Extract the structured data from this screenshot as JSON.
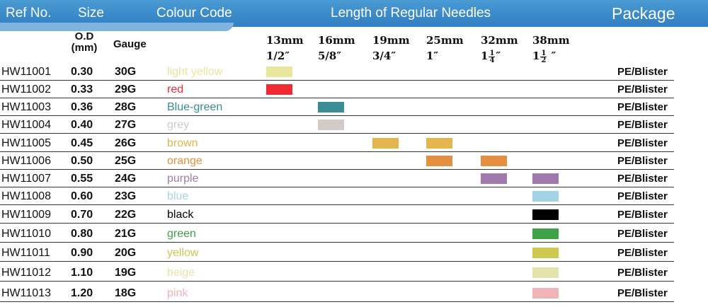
{
  "header": {
    "ref": "Ref No.",
    "size": "Size",
    "colour_code": "Colour Code",
    "length": "Length of Regular Needles",
    "package": "Package"
  },
  "subheader": {
    "od_line1": "O.D",
    "od_line2": "(mm)",
    "gauge": "Gauge"
  },
  "lengths": [
    {
      "mm": "13mm",
      "inch": "1/2″"
    },
    {
      "mm": "16mm",
      "inch": "5/8″"
    },
    {
      "mm": "19mm",
      "inch": "3/4″"
    },
    {
      "mm": "25mm",
      "inch": "1″"
    },
    {
      "mm": "32mm",
      "inch_whole": "1",
      "inch_num": "1",
      "inch_den": "4",
      "inch_mark": "″"
    },
    {
      "mm": "38mm",
      "inch_whole": "1",
      "inch_num": "1",
      "inch_den": "2",
      "inch_mark": " ″"
    }
  ],
  "rows": [
    {
      "ref": "HW11001",
      "od": "0.30",
      "gauge": "30G",
      "colour": "light yellow",
      "hex": "#e8e69a",
      "lengths": [
        "13mm"
      ],
      "package": "PE/Blister"
    },
    {
      "ref": "HW11002",
      "od": "0.33",
      "gauge": "29G",
      "colour": "red",
      "hex": "#ee2a32",
      "lengths": [
        "13mm"
      ],
      "package": "PE/Blister"
    },
    {
      "ref": "HW11003",
      "od": "0.36",
      "gauge": "28G",
      "colour": "Blue-green",
      "hex": "#3a8d93",
      "lengths": [
        "16mm"
      ],
      "package": "PE/Blister"
    },
    {
      "ref": "HW11004",
      "od": "0.40",
      "gauge": "27G",
      "colour": "grey",
      "hex": "#d3cac7",
      "lengths": [
        "16mm"
      ],
      "package": "PE/Blister"
    },
    {
      "ref": "HW11005",
      "od": "0.45",
      "gauge": "26G",
      "colour": "brown",
      "hex": "#e3b54c",
      "lengths": [
        "19mm",
        "25mm"
      ],
      "package": "PE/Blister"
    },
    {
      "ref": "HW11006",
      "od": "0.50",
      "gauge": "25G",
      "colour": "orange",
      "hex": "#e38f3f",
      "lengths": [
        "25mm",
        "32mm"
      ],
      "package": "PE/Blister"
    },
    {
      "ref": "HW11007",
      "od": "0.55",
      "gauge": "24G",
      "colour": "purple",
      "hex": "#a07aad",
      "lengths": [
        "32mm",
        "38mm"
      ],
      "package": "PE/Blister"
    },
    {
      "ref": "HW11008",
      "od": "0.60",
      "gauge": "23G",
      "colour": "blue",
      "hex": "#a4d3e6",
      "lengths": [
        "38mm"
      ],
      "package": "PE/Blister"
    },
    {
      "ref": "HW11009",
      "od": "0.70",
      "gauge": "22G",
      "colour": "black",
      "hex": "#000000",
      "lengths": [
        "38mm"
      ],
      "package": "PE/Blister"
    },
    {
      "ref": "HW11010",
      "od": "0.80",
      "gauge": "21G",
      "colour": "green",
      "hex": "#3fa24a",
      "lengths": [
        "38mm"
      ],
      "package": "PE/Blister"
    },
    {
      "ref": "HW11011",
      "od": "0.90",
      "gauge": "20G",
      "colour": "yellow",
      "hex": "#ccc94e",
      "lengths": [
        "38mm"
      ],
      "package": "PE/Blister"
    },
    {
      "ref": "HW11012",
      "od": "1.10",
      "gauge": "19G",
      "colour": "beige",
      "hex": "#e5e3a9",
      "lengths": [
        "38mm"
      ],
      "package": "PE/Blister"
    },
    {
      "ref": "HW11013",
      "od": "1.20",
      "gauge": "18G",
      "colour": "pink",
      "hex": "#eeb4b8",
      "lengths": [
        "38mm"
      ],
      "package": "PE/Blister"
    }
  ]
}
